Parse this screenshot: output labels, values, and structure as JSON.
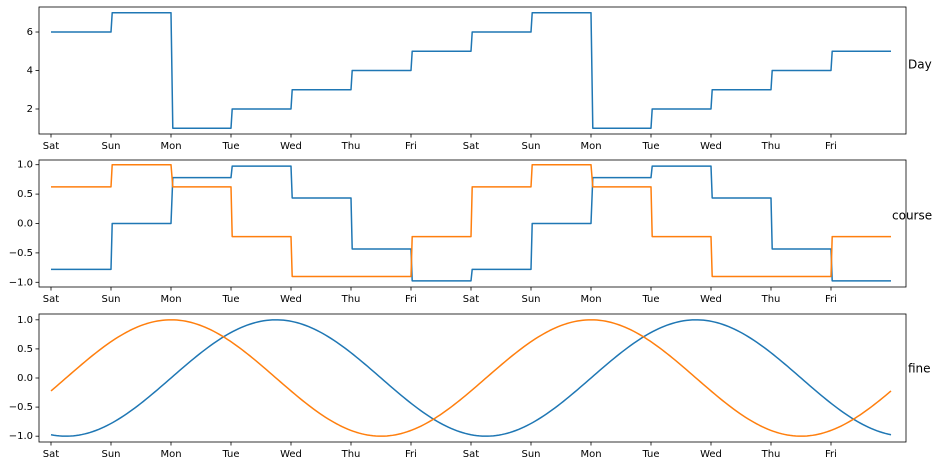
{
  "chart_data": [
    {
      "type": "line",
      "side_label": "Day",
      "x_tick_labels": [
        "Sat",
        "Sun",
        "Mon",
        "Tue",
        "Wed",
        "Thu",
        "Fri",
        "Sat",
        "Sun",
        "Mon",
        "Tue",
        "Wed",
        "Thu",
        "Fri"
      ],
      "yticks": [
        2,
        4,
        6
      ],
      "ylim": [
        0.7,
        7.3
      ],
      "xlim": [
        -0.2,
        14.25
      ],
      "series": [
        {
          "color": "#1f77b4",
          "points": [
            [
              0,
              6
            ],
            [
              1,
              6
            ],
            [
              1.02,
              7
            ],
            [
              2,
              7
            ],
            [
              2.03,
              1
            ],
            [
              3,
              1
            ],
            [
              3.02,
              2
            ],
            [
              4,
              2
            ],
            [
              4.02,
              3
            ],
            [
              5,
              3
            ],
            [
              5.02,
              4
            ],
            [
              6,
              4
            ],
            [
              6.02,
              5
            ],
            [
              7,
              5
            ],
            [
              7.02,
              6
            ],
            [
              8,
              6
            ],
            [
              8.02,
              7
            ],
            [
              9,
              7
            ],
            [
              9.03,
              1
            ],
            [
              10,
              1
            ],
            [
              10.02,
              2
            ],
            [
              11,
              2
            ],
            [
              11.02,
              3
            ],
            [
              12,
              3
            ],
            [
              12.02,
              4
            ],
            [
              13,
              4
            ],
            [
              13.02,
              5
            ],
            [
              14,
              5
            ]
          ]
        }
      ]
    },
    {
      "type": "line",
      "side_label": "course",
      "x_tick_labels": [
        "Sat",
        "Sun",
        "Mon",
        "Tue",
        "Wed",
        "Thu",
        "Fri",
        "Sat",
        "Sun",
        "Mon",
        "Tue",
        "Wed",
        "Thu",
        "Fri"
      ],
      "yticks": [
        -1.0,
        -0.5,
        0.0,
        0.5,
        1.0
      ],
      "ytick_labels": [
        "−1.0",
        "−0.5",
        "0.0",
        "0.5",
        "1.0"
      ],
      "ylim": [
        -1.08,
        1.08
      ],
      "xlim": [
        -0.2,
        14.25
      ],
      "series": [
        {
          "color": "#1f77b4",
          "points": [
            [
              0,
              -0.78
            ],
            [
              1,
              -0.78
            ],
            [
              1.02,
              0
            ],
            [
              2,
              0
            ],
            [
              2.03,
              0.78
            ],
            [
              3,
              0.78
            ],
            [
              3.02,
              0.975
            ],
            [
              4,
              0.975
            ],
            [
              4.02,
              0.434
            ],
            [
              5,
              0.434
            ],
            [
              5.02,
              -0.434
            ],
            [
              6,
              -0.434
            ],
            [
              6.02,
              -0.975
            ],
            [
              7,
              -0.975
            ],
            [
              7.02,
              -0.78
            ],
            [
              8,
              -0.78
            ],
            [
              8.02,
              0
            ],
            [
              9,
              0
            ],
            [
              9.03,
              0.78
            ],
            [
              10,
              0.78
            ],
            [
              10.02,
              0.975
            ],
            [
              11,
              0.975
            ],
            [
              11.02,
              0.434
            ],
            [
              12,
              0.434
            ],
            [
              12.02,
              -0.434
            ],
            [
              13,
              -0.434
            ],
            [
              13.02,
              -0.975
            ],
            [
              14,
              -0.975
            ]
          ]
        },
        {
          "color": "#ff7f0e",
          "points": [
            [
              0,
              0.623
            ],
            [
              1,
              0.623
            ],
            [
              1.02,
              1
            ],
            [
              2,
              1
            ],
            [
              2.03,
              0.623
            ],
            [
              3,
              0.623
            ],
            [
              3.02,
              -0.223
            ],
            [
              4,
              -0.223
            ],
            [
              4.02,
              -0.901
            ],
            [
              5,
              -0.901
            ],
            [
              5.02,
              -0.901
            ],
            [
              6,
              -0.901
            ],
            [
              6.02,
              -0.223
            ],
            [
              7,
              -0.223
            ],
            [
              7.02,
              0.623
            ],
            [
              8,
              0.623
            ],
            [
              8.02,
              1
            ],
            [
              9,
              1
            ],
            [
              9.03,
              0.623
            ],
            [
              10,
              0.623
            ],
            [
              10.02,
              -0.223
            ],
            [
              11,
              -0.223
            ],
            [
              11.02,
              -0.901
            ],
            [
              12,
              -0.901
            ],
            [
              12.02,
              -0.901
            ],
            [
              13,
              -0.901
            ],
            [
              13.02,
              -0.223
            ],
            [
              14,
              -0.223
            ]
          ]
        }
      ]
    },
    {
      "type": "line",
      "side_label": "fine",
      "x_tick_labels": [
        "Sat",
        "Sun",
        "Mon",
        "Tue",
        "Wed",
        "Thu",
        "Fri",
        "Sat",
        "Sun",
        "Mon",
        "Tue",
        "Wed",
        "Thu",
        "Fri"
      ],
      "yticks": [
        -1.0,
        -0.5,
        0.0,
        0.5,
        1.0
      ],
      "ytick_labels": [
        "−1.0",
        "−0.5",
        "0.0",
        "0.5",
        "1.0"
      ],
      "ylim": [
        -1.1,
        1.1
      ],
      "xlim": [
        -0.2,
        14.25
      ],
      "series": [
        {
          "color": "#1f77b4",
          "function": "sin",
          "period_days": 7,
          "phase_day": 0.25,
          "amplitude": 1,
          "x_range": [
            0,
            14
          ]
        },
        {
          "color": "#ff7f0e",
          "function": "cos",
          "period_days": 7,
          "phase_day": 0.25,
          "amplitude": 1,
          "x_range": [
            0,
            14
          ]
        }
      ]
    }
  ]
}
